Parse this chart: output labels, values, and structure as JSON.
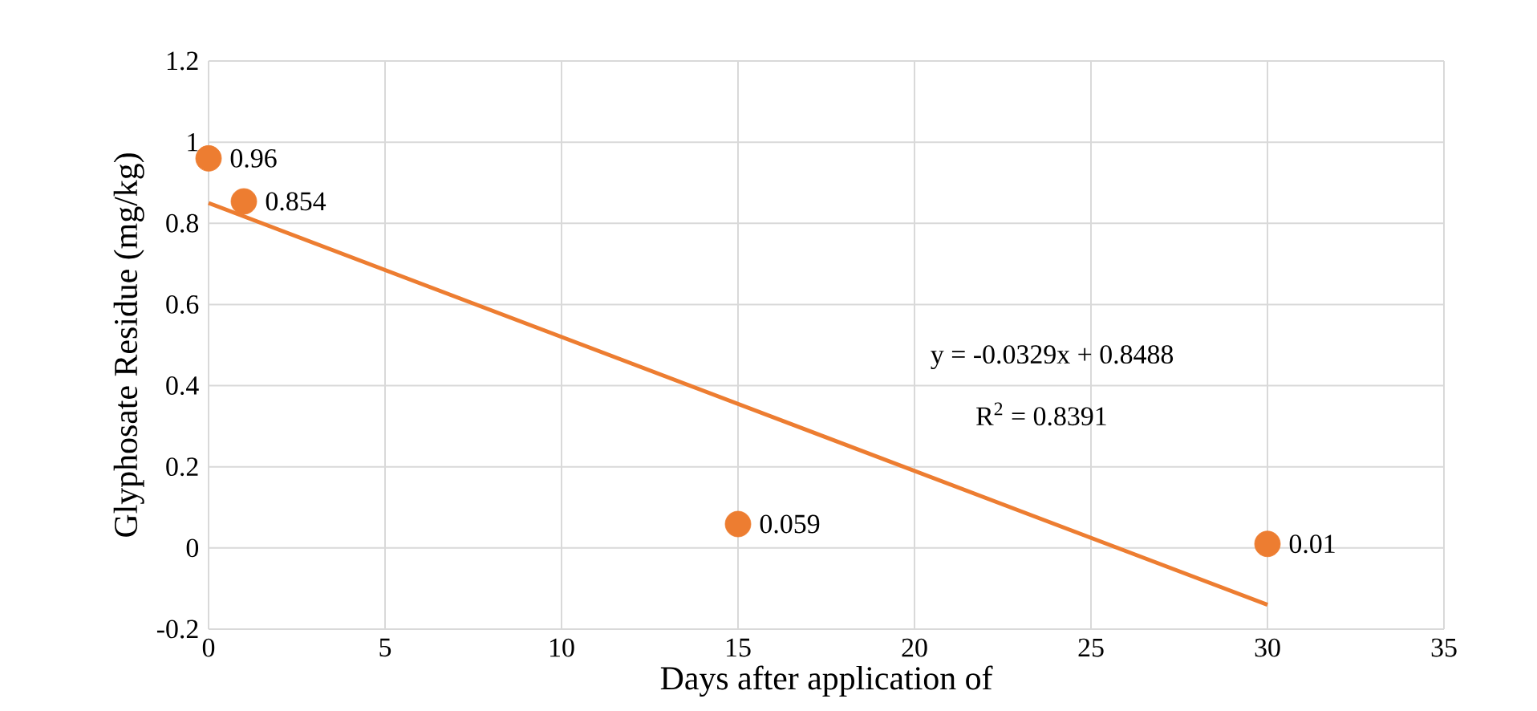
{
  "chart_data": {
    "type": "scatter",
    "xlabel": "Days after application of",
    "ylabel": "Glyphosate Residue (mg/kg)",
    "series": [
      {
        "color": "#ed7d31",
        "marker": "circle",
        "x": [
          0,
          1,
          15,
          30
        ],
        "values": [
          0.96,
          0.854,
          0.059,
          0.01
        ],
        "value_labels": [
          "0.96",
          "0.854",
          "0.059",
          "0.01"
        ]
      },
      {
        "type": "line",
        "color": "#ed7d31",
        "x": [
          0,
          30
        ],
        "values": [
          0.85,
          -0.14
        ]
      }
    ],
    "annotations": [
      "y = -0.0329x + 0.8488",
      "R$^{2}$ = 0.8391"
    ],
    "xlim": [
      0,
      35
    ],
    "ylim": [
      -0.2,
      1.2
    ],
    "xticks": [
      0,
      5,
      10,
      15,
      20,
      25,
      30,
      35
    ],
    "yticks": [
      -0.2,
      0,
      0.2,
      0.4,
      0.6,
      0.8,
      1,
      1.2
    ],
    "grid": true
  }
}
